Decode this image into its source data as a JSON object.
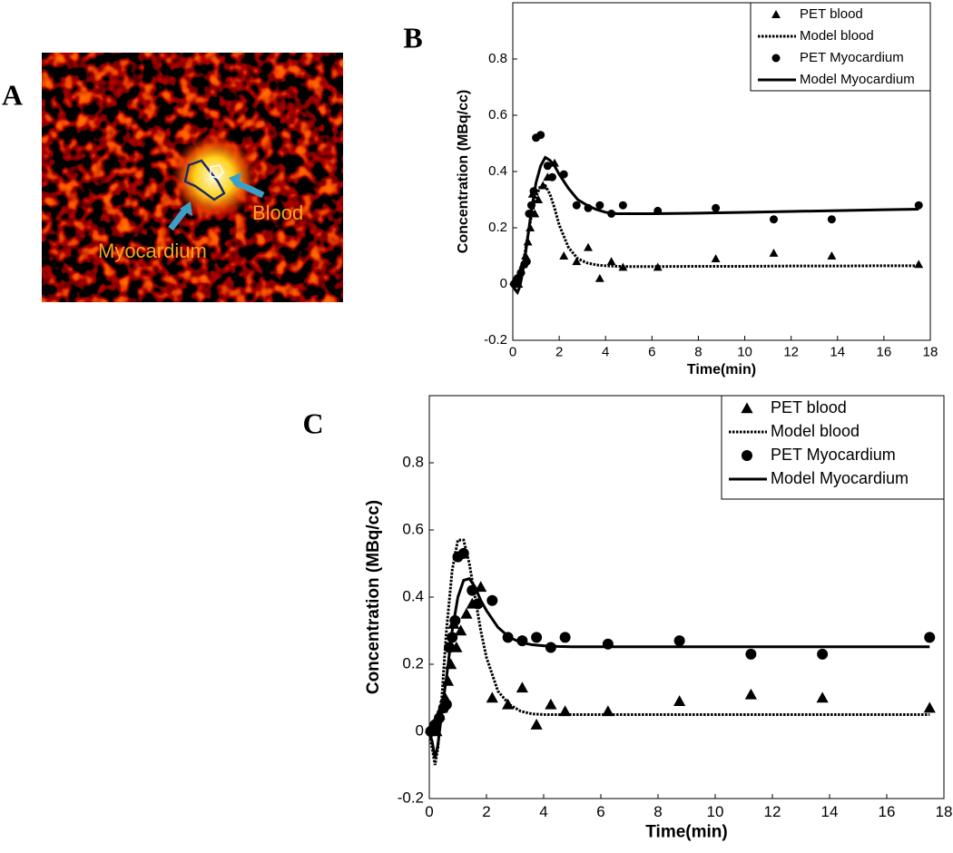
{
  "panel_a": {
    "label": "A",
    "annotations": [
      "Myocardium",
      "Blood"
    ]
  },
  "chart_data": [
    {
      "type": "line",
      "panel_label": "B",
      "xlabel": "Time(min)",
      "ylabel": "Concentration (MBq/cc)",
      "xlim": [
        0,
        18
      ],
      "xticks": [
        0,
        2,
        4,
        6,
        8,
        10,
        12,
        14,
        16,
        18
      ],
      "ylim": [
        -0.2,
        1.0
      ],
      "yticks": [
        -0.2,
        0,
        0.2,
        0.4,
        0.6,
        0.8
      ],
      "legend": "upper right",
      "series": [
        {
          "name": "PET blood",
          "style": "markers",
          "marker": "triangle",
          "color": "#000000",
          "x": [
            0.05,
            0.15,
            0.25,
            0.35,
            0.45,
            0.55,
            0.65,
            0.75,
            0.85,
            0.95,
            1.1,
            1.3,
            1.5,
            1.8,
            2.2,
            2.75,
            3.25,
            3.75,
            4.25,
            4.75,
            6.25,
            8.75,
            11.25,
            13.75,
            17.5
          ],
          "values": [
            0.01,
            0.02,
            0.0,
            0.05,
            0.07,
            0.1,
            0.15,
            0.2,
            0.32,
            0.25,
            0.3,
            0.35,
            0.38,
            0.43,
            0.1,
            0.08,
            0.13,
            0.02,
            0.08,
            0.06,
            0.06,
            0.09,
            0.11,
            0.1,
            0.07
          ]
        },
        {
          "name": "Model blood",
          "style": "dotted",
          "color": "#000000",
          "x": [
            0,
            0.1,
            0.2,
            0.3,
            0.4,
            0.5,
            0.6,
            0.8,
            1.0,
            1.2,
            1.4,
            1.6,
            1.8,
            2.0,
            2.4,
            2.8,
            3.2,
            3.6,
            4.0,
            4.5,
            5,
            6,
            8,
            10,
            12,
            14,
            16,
            17.5
          ],
          "values": [
            0,
            -0.02,
            -0.03,
            0,
            0.05,
            0.1,
            0.15,
            0.24,
            0.31,
            0.35,
            0.35,
            0.32,
            0.27,
            0.21,
            0.13,
            0.09,
            0.075,
            0.068,
            0.065,
            0.063,
            0.062,
            0.062,
            0.063,
            0.063,
            0.064,
            0.064,
            0.065,
            0.065
          ]
        },
        {
          "name": "PET Myocardium",
          "style": "markers",
          "marker": "circle",
          "color": "#000000",
          "x": [
            0.05,
            0.2,
            0.35,
            0.5,
            0.6,
            0.7,
            0.8,
            0.9,
            1.0,
            1.2,
            1.5,
            1.7,
            2.2,
            2.75,
            3.25,
            3.75,
            4.25,
            4.75,
            6.25,
            8.75,
            11.25,
            13.75,
            17.5
          ],
          "values": [
            0.0,
            0.02,
            0.04,
            0.07,
            0.08,
            0.25,
            0.28,
            0.33,
            0.52,
            0.53,
            0.42,
            0.38,
            0.39,
            0.28,
            0.27,
            0.28,
            0.25,
            0.28,
            0.26,
            0.27,
            0.23,
            0.23,
            0.28
          ]
        },
        {
          "name": "Model Myocardium",
          "style": "solid",
          "color": "#000000",
          "x": [
            0,
            0.1,
            0.2,
            0.3,
            0.4,
            0.5,
            0.6,
            0.8,
            1.0,
            1.2,
            1.4,
            1.6,
            1.8,
            2.0,
            2.4,
            2.8,
            3.2,
            3.6,
            4.0,
            4.5,
            5,
            6,
            8,
            10,
            12,
            14,
            16,
            17.5
          ],
          "values": [
            0,
            -0.02,
            -0.03,
            -0.01,
            0.03,
            0.08,
            0.14,
            0.26,
            0.36,
            0.42,
            0.45,
            0.44,
            0.42,
            0.39,
            0.34,
            0.3,
            0.28,
            0.265,
            0.255,
            0.25,
            0.25,
            0.25,
            0.252,
            0.255,
            0.258,
            0.261,
            0.264,
            0.266
          ]
        }
      ]
    },
    {
      "type": "line",
      "panel_label": "C",
      "xlabel": "Time(min)",
      "ylabel": "Concentration (MBq/cc)",
      "xlim": [
        0,
        18
      ],
      "xticks": [
        0,
        2,
        4,
        6,
        8,
        10,
        12,
        14,
        16,
        18
      ],
      "ylim": [
        -0.2,
        1.0
      ],
      "yticks": [
        -0.2,
        0,
        0.2,
        0.4,
        0.6,
        0.8
      ],
      "legend": "upper right",
      "series": [
        {
          "name": "PET blood",
          "style": "markers",
          "marker": "triangle",
          "color": "#000000",
          "x": [
            0.05,
            0.15,
            0.25,
            0.35,
            0.45,
            0.55,
            0.65,
            0.75,
            0.85,
            0.95,
            1.1,
            1.3,
            1.5,
            1.8,
            2.2,
            2.75,
            3.25,
            3.75,
            4.25,
            4.75,
            6.25,
            8.75,
            11.25,
            13.75,
            17.5
          ],
          "values": [
            0.01,
            0.02,
            0.0,
            0.05,
            0.07,
            0.1,
            0.15,
            0.2,
            0.32,
            0.25,
            0.3,
            0.35,
            0.38,
            0.43,
            0.1,
            0.08,
            0.13,
            0.02,
            0.08,
            0.06,
            0.06,
            0.09,
            0.11,
            0.1,
            0.07
          ]
        },
        {
          "name": "Model blood",
          "style": "dotted",
          "color": "#000000",
          "x": [
            0,
            0.1,
            0.2,
            0.3,
            0.4,
            0.5,
            0.6,
            0.8,
            1.0,
            1.2,
            1.4,
            1.6,
            1.8,
            2.0,
            2.4,
            2.8,
            3.2,
            3.6,
            4.0,
            4.5,
            5,
            6,
            8,
            10,
            12,
            14,
            16,
            17.5
          ],
          "values": [
            0,
            -0.05,
            -0.1,
            -0.05,
            0.05,
            0.18,
            0.3,
            0.48,
            0.57,
            0.57,
            0.5,
            0.4,
            0.3,
            0.22,
            0.12,
            0.08,
            0.06,
            0.052,
            0.05,
            0.05,
            0.05,
            0.05,
            0.05,
            0.05,
            0.05,
            0.05,
            0.05,
            0.05
          ]
        },
        {
          "name": "PET Myocardium",
          "style": "markers",
          "marker": "circle",
          "color": "#000000",
          "x": [
            0.05,
            0.2,
            0.35,
            0.5,
            0.6,
            0.7,
            0.8,
            0.9,
            1.0,
            1.2,
            1.5,
            1.7,
            2.2,
            2.75,
            3.25,
            3.75,
            4.25,
            4.75,
            6.25,
            8.75,
            11.25,
            13.75,
            17.5
          ],
          "values": [
            0.0,
            0.02,
            0.04,
            0.07,
            0.08,
            0.25,
            0.28,
            0.33,
            0.52,
            0.53,
            0.42,
            0.38,
            0.39,
            0.28,
            0.27,
            0.28,
            0.25,
            0.28,
            0.26,
            0.27,
            0.23,
            0.23,
            0.28
          ]
        },
        {
          "name": "Model Myocardium",
          "style": "solid",
          "color": "#000000",
          "x": [
            0,
            0.1,
            0.2,
            0.3,
            0.4,
            0.5,
            0.6,
            0.8,
            1.0,
            1.2,
            1.4,
            1.6,
            1.8,
            2.0,
            2.4,
            2.8,
            3.2,
            3.6,
            4.0,
            4.5,
            5,
            6,
            8,
            10,
            12,
            14,
            16,
            17.5
          ],
          "values": [
            0,
            -0.03,
            -0.08,
            -0.04,
            0.03,
            0.1,
            0.16,
            0.3,
            0.4,
            0.45,
            0.455,
            0.43,
            0.39,
            0.36,
            0.31,
            0.28,
            0.265,
            0.258,
            0.255,
            0.253,
            0.252,
            0.252,
            0.252,
            0.252,
            0.252,
            0.252,
            0.252,
            0.252
          ]
        }
      ]
    }
  ]
}
